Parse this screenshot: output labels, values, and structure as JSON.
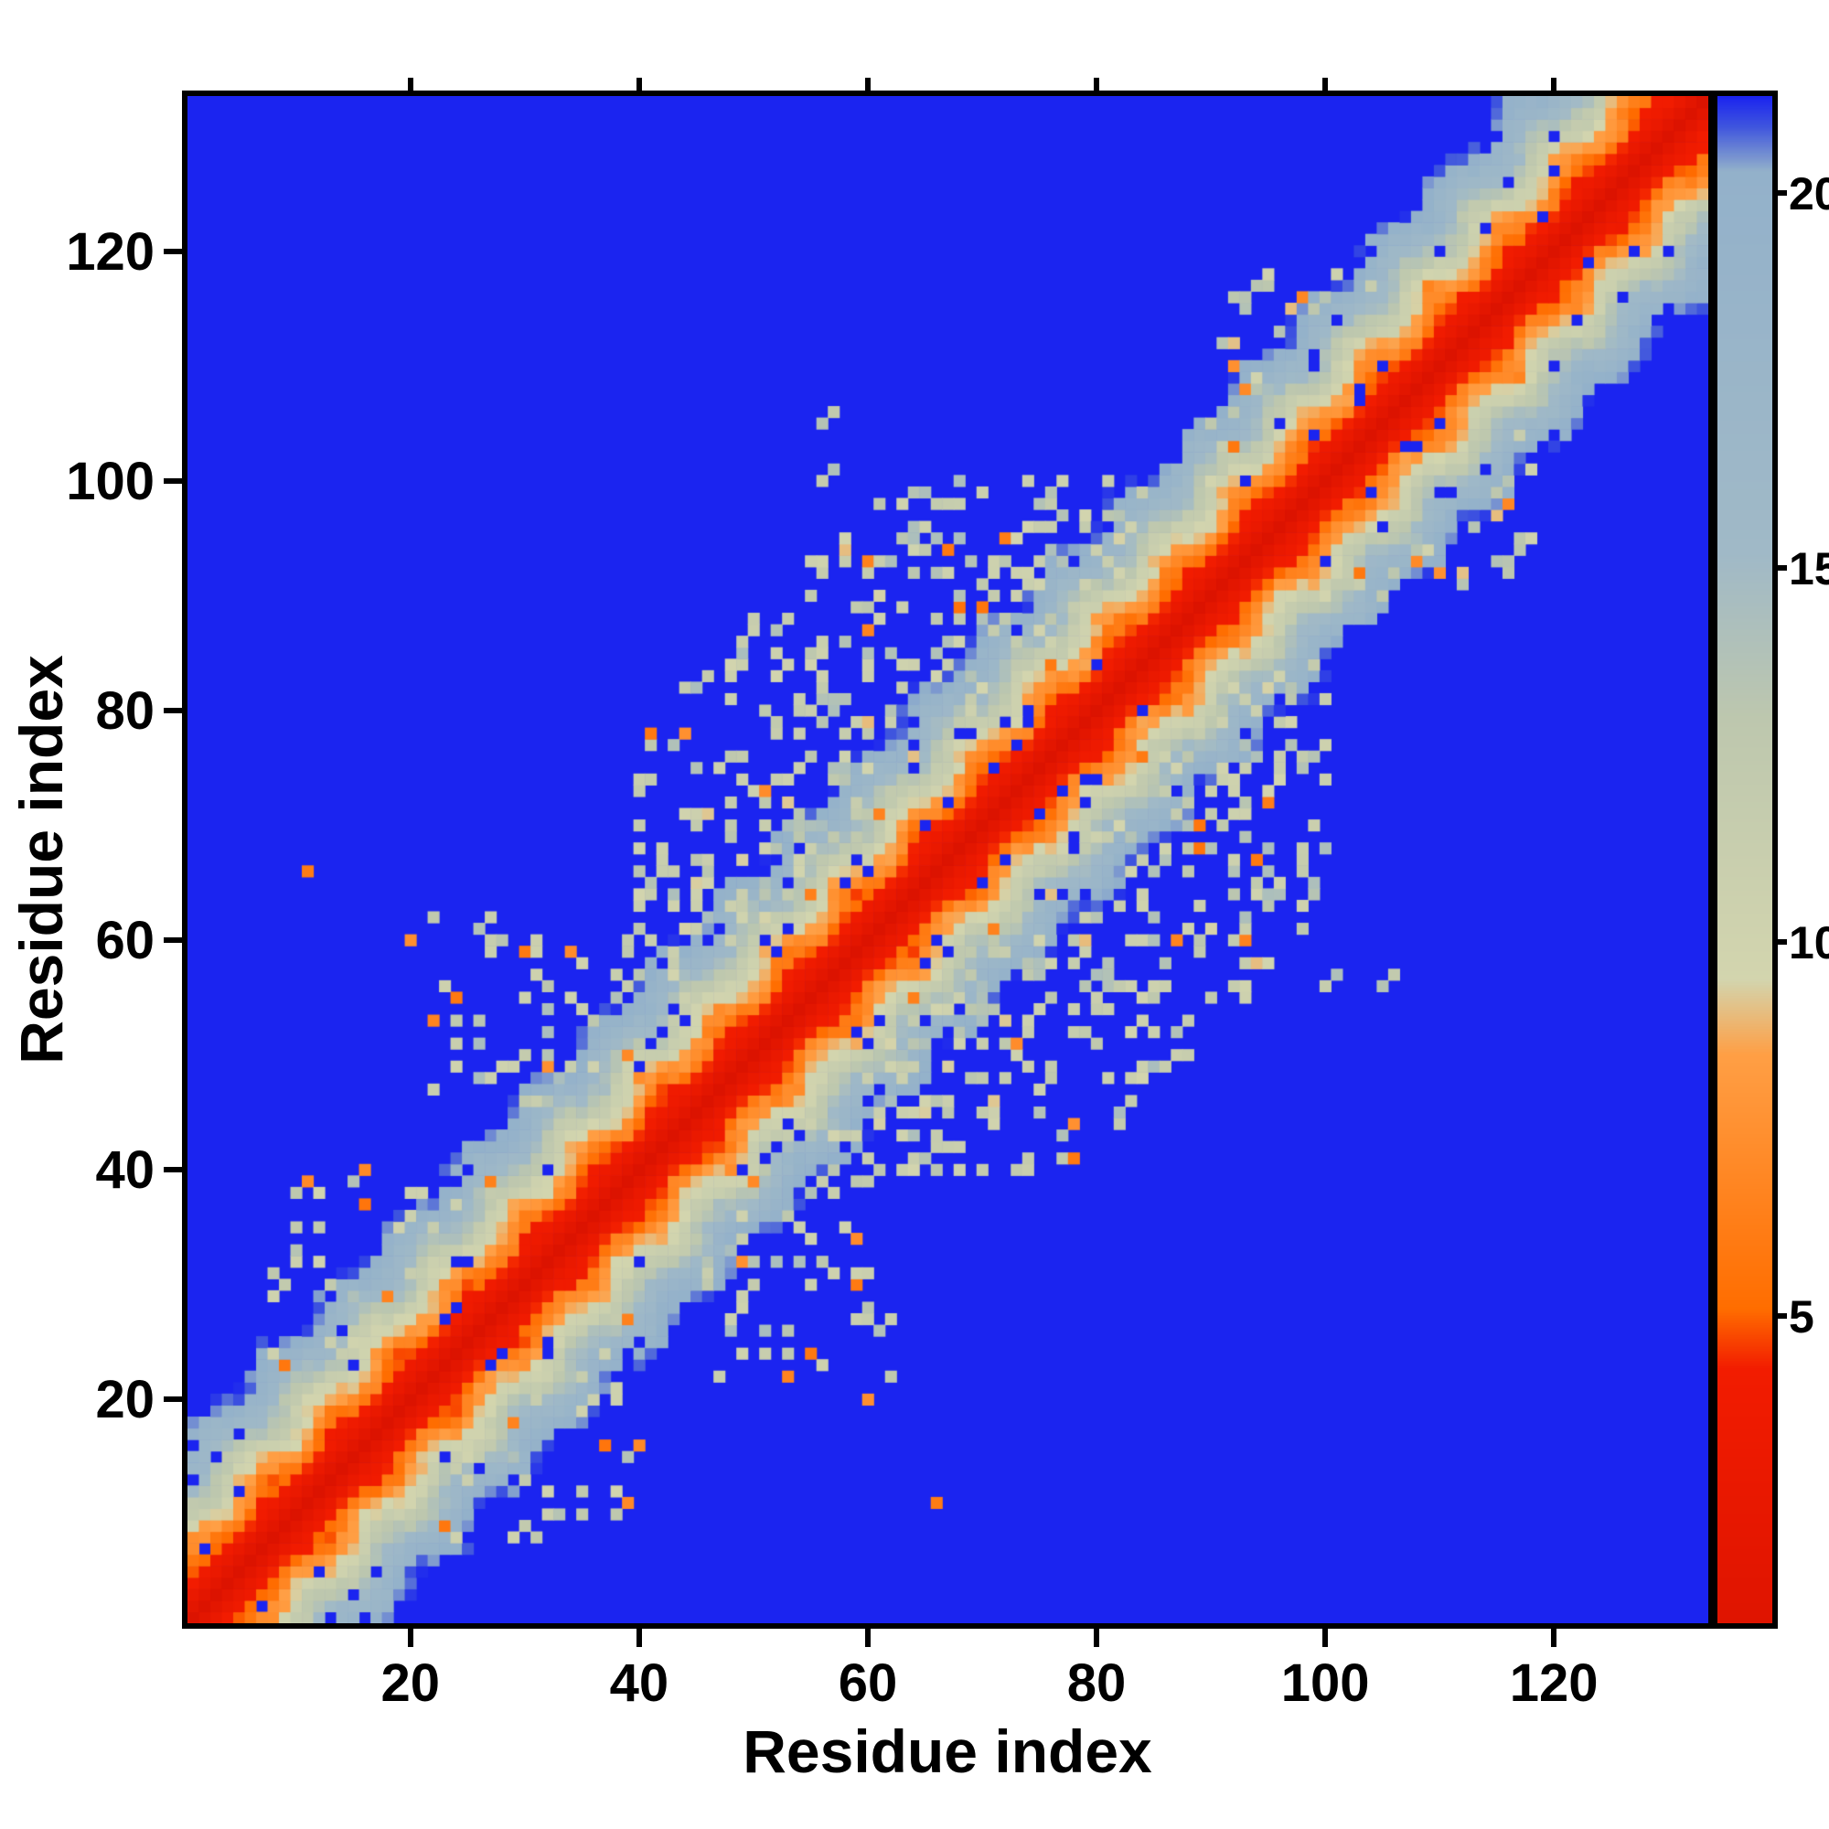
{
  "chart_data": {
    "type": "heatmap",
    "title": "",
    "xlabel": "Residue index",
    "ylabel": "Residue index",
    "n_residues": 133,
    "axis_range": [
      1,
      133
    ],
    "x_ticks": [
      20,
      40,
      60,
      80,
      100,
      120
    ],
    "y_ticks": [
      20,
      40,
      60,
      80,
      100,
      120
    ],
    "grid": false,
    "legend": "none",
    "colorbar": {
      "position": "right",
      "ticks": [
        5,
        10,
        15,
        20
      ],
      "vmin": 0.9,
      "vmax": 21.3
    },
    "background_value_color": "#1b24f0",
    "colormap_stops": [
      [
        0.0,
        "#da1200"
      ],
      [
        4.3,
        "#f21c00"
      ],
      [
        5.1,
        "#ff6d00"
      ],
      [
        8.5,
        "#ff9f45"
      ],
      [
        9.5,
        "#d3d5ae"
      ],
      [
        13.0,
        "#bdc7ae"
      ],
      [
        15.2,
        "#a0b9c7"
      ],
      [
        20.3,
        "#93b1ca"
      ],
      [
        20.9,
        "#3f55de"
      ],
      [
        21.3,
        "#1b24f0"
      ]
    ],
    "pattern": {
      "description": "Symmetric residue-residue distance matrix (133x133). Short distances (red) along the main diagonal with an orange/pale banded halo that fades to light gray-blue, saturating to uniform blue (>= ~21) away from the diagonal. A broad cloud of medium-distance contacts (pale/gray-blue speckles) spans residues ~40-100, with sparser contact arms near (22-40 vs 44-62), (11-25 vs 52-70) and (96-118 vs 90-112), plus scattered blue dropouts inside the diagonal band and occasional orange off-diagonal contacts.",
      "diagonal_offset": 0.3,
      "diagonal_slope": 1.25,
      "wiggle_amp": 1.3,
      "wiggle_freq": 0.55,
      "noise_amp": 1.7,
      "band_cap": 21.3,
      "dropout_prob": 0.05,
      "orange_speck_prob": 0.012,
      "seed": 12345,
      "clusters": [
        {
          "i": [
            40,
            100
          ],
          "j": [
            40,
            100
          ],
          "max_sep": 38,
          "density": 0.22,
          "value": [
            9.0,
            14.5
          ]
        },
        {
          "i": [
            22,
            40
          ],
          "j": [
            44,
            62
          ],
          "max_sep": 45,
          "density": 0.12,
          "value": [
            10.0,
            14.5
          ]
        },
        {
          "i": [
            11,
            25
          ],
          "j": [
            52,
            70
          ],
          "max_sep": 60,
          "density": 0.06,
          "value": [
            10.0,
            14.5
          ]
        },
        {
          "i": [
            96,
            118
          ],
          "j": [
            90,
            112
          ],
          "max_sep": 24,
          "density": 0.13,
          "value": [
            9.0,
            14.0
          ]
        },
        {
          "i": [
            54,
            62
          ],
          "j": [
            94,
            108
          ],
          "max_sep": 55,
          "density": 0.05,
          "value": [
            10.5,
            14.5
          ]
        },
        {
          "i": [
            8,
            40
          ],
          "j": [
            8,
            40
          ],
          "max_sep": 30,
          "density": 0.1,
          "value": [
            9.5,
            14.5
          ]
        }
      ]
    }
  }
}
